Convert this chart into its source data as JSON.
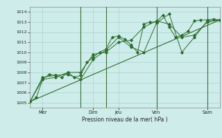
{
  "title": "",
  "xlabel": "Pression niveau de la mer( hPa )",
  "ylabel": "",
  "ylim": [
    1004.5,
    1014.5
  ],
  "xlim": [
    0,
    120
  ],
  "bg_color": "#ceecea",
  "grid_color": "#a8d5d0",
  "line_color": "#2d6b2d",
  "day_line_color": "#3a6e3a",
  "xticks": [
    8,
    40,
    56,
    80,
    112
  ],
  "xtick_labels": [
    "Mer",
    "Dim",
    "Jeu",
    "Ven",
    "Sam"
  ],
  "yticks": [
    1005,
    1006,
    1007,
    1008,
    1009,
    1010,
    1011,
    1012,
    1013,
    1014
  ],
  "day_vlines": [
    32,
    48,
    80,
    112
  ],
  "series1": {
    "x": [
      0,
      4,
      8,
      12,
      16,
      20,
      24,
      28,
      32,
      36,
      40,
      44,
      48,
      52,
      56,
      60,
      64,
      68,
      72,
      76,
      80,
      84,
      88,
      92,
      96,
      100,
      104,
      108,
      112,
      116,
      120
    ],
    "y": [
      1005.1,
      1005.5,
      1007.3,
      1007.8,
      1007.7,
      1007.5,
      1008.0,
      1007.5,
      1007.7,
      1009.0,
      1009.5,
      1010.0,
      1010.3,
      1011.5,
      1011.6,
      1011.3,
      1010.7,
      1010.0,
      1012.8,
      1013.0,
      1013.0,
      1013.7,
      1012.5,
      1011.5,
      1011.7,
      1012.1,
      1013.1,
      1013.2,
      1013.2,
      1013.3,
      1013.2
    ]
  },
  "series2": {
    "x": [
      0,
      8,
      16,
      24,
      32,
      40,
      48,
      56,
      64,
      72,
      80,
      88,
      96,
      104,
      112,
      120
    ],
    "y": [
      1005.1,
      1007.3,
      1007.5,
      1008.0,
      1008.0,
      1009.8,
      1010.0,
      1011.0,
      1011.2,
      1012.5,
      1013.1,
      1012.8,
      1011.5,
      1011.7,
      1013.0,
      1013.2
    ]
  },
  "series3": {
    "x": [
      0,
      8,
      16,
      24,
      32,
      40,
      48,
      56,
      64,
      72,
      80,
      88,
      96,
      104,
      112,
      120
    ],
    "y": [
      1005.1,
      1007.5,
      1007.7,
      1007.8,
      1007.3,
      1009.3,
      1010.2,
      1011.5,
      1010.5,
      1010.0,
      1012.9,
      1013.8,
      1010.0,
      1011.5,
      1013.1,
      1013.2
    ]
  },
  "trend": {
    "x": [
      0,
      120
    ],
    "y": [
      1005.1,
      1013.2
    ]
  }
}
